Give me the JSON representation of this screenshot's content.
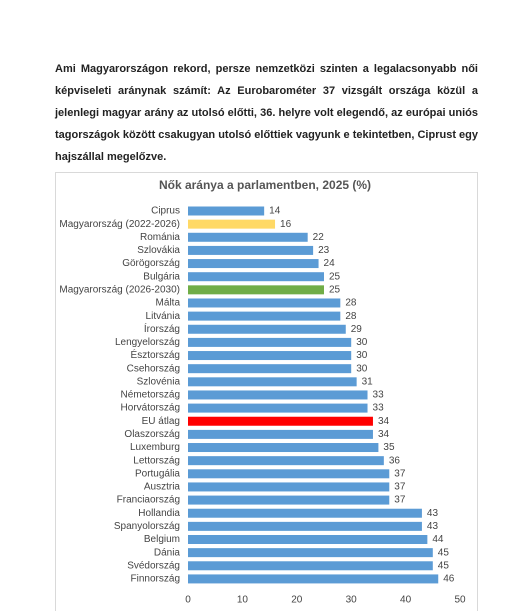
{
  "paragraph": "Ami Magyarországon rekord, persze nemzetközi szinten a legalacsonyabb női képviseleti aránynak számít: Az Eurobarométer 37 vizsgált országa közül a jelenlegi magyar arány az utolsó előtti, 36. helyre volt elegendő, az európai uniós tagországok között csakugyan utolsó előttiek vagyunk e tekintetben, Ciprust egy hajszállal megelőzve.",
  "chart_data": {
    "type": "bar",
    "orientation": "horizontal",
    "title": "Nők aránya a parlamentben, 2025 (%)",
    "categories": [
      "Ciprus",
      "Magyarország (2022-2026)",
      "Románia",
      "Szlovákia",
      "Görögország",
      "Bulgária",
      "Magyarország (2026-2030)",
      "Málta",
      "Litvánia",
      "Írország",
      "Lengyelország",
      "Észtország",
      "Csehország",
      "Szlovénia",
      "Németország",
      "Horvátország",
      "EU átlag",
      "Olaszország",
      "Luxemburg",
      "Lettország",
      "Portugália",
      "Ausztria",
      "Franciaország",
      "Hollandia",
      "Spanyolország",
      "Belgium",
      "Dánia",
      "Svédország",
      "Finnország"
    ],
    "values": [
      14,
      16,
      22,
      23,
      24,
      25,
      25,
      28,
      28,
      29,
      30,
      30,
      30,
      31,
      33,
      33,
      34,
      34,
      35,
      36,
      37,
      37,
      37,
      43,
      43,
      44,
      45,
      45,
      46
    ],
    "colors": [
      "#5b9bd5",
      "#ffd966",
      "#5b9bd5",
      "#5b9bd5",
      "#5b9bd5",
      "#5b9bd5",
      "#70ad47",
      "#5b9bd5",
      "#5b9bd5",
      "#5b9bd5",
      "#5b9bd5",
      "#5b9bd5",
      "#5b9bd5",
      "#5b9bd5",
      "#5b9bd5",
      "#5b9bd5",
      "#ff0000",
      "#5b9bd5",
      "#5b9bd5",
      "#5b9bd5",
      "#5b9bd5",
      "#5b9bd5",
      "#5b9bd5",
      "#5b9bd5",
      "#5b9bd5",
      "#5b9bd5",
      "#5b9bd5",
      "#5b9bd5",
      "#5b9bd5"
    ],
    "xlim": [
      0,
      50
    ],
    "xticks": [
      0,
      10,
      20,
      30,
      40,
      50
    ],
    "grid": false
  }
}
